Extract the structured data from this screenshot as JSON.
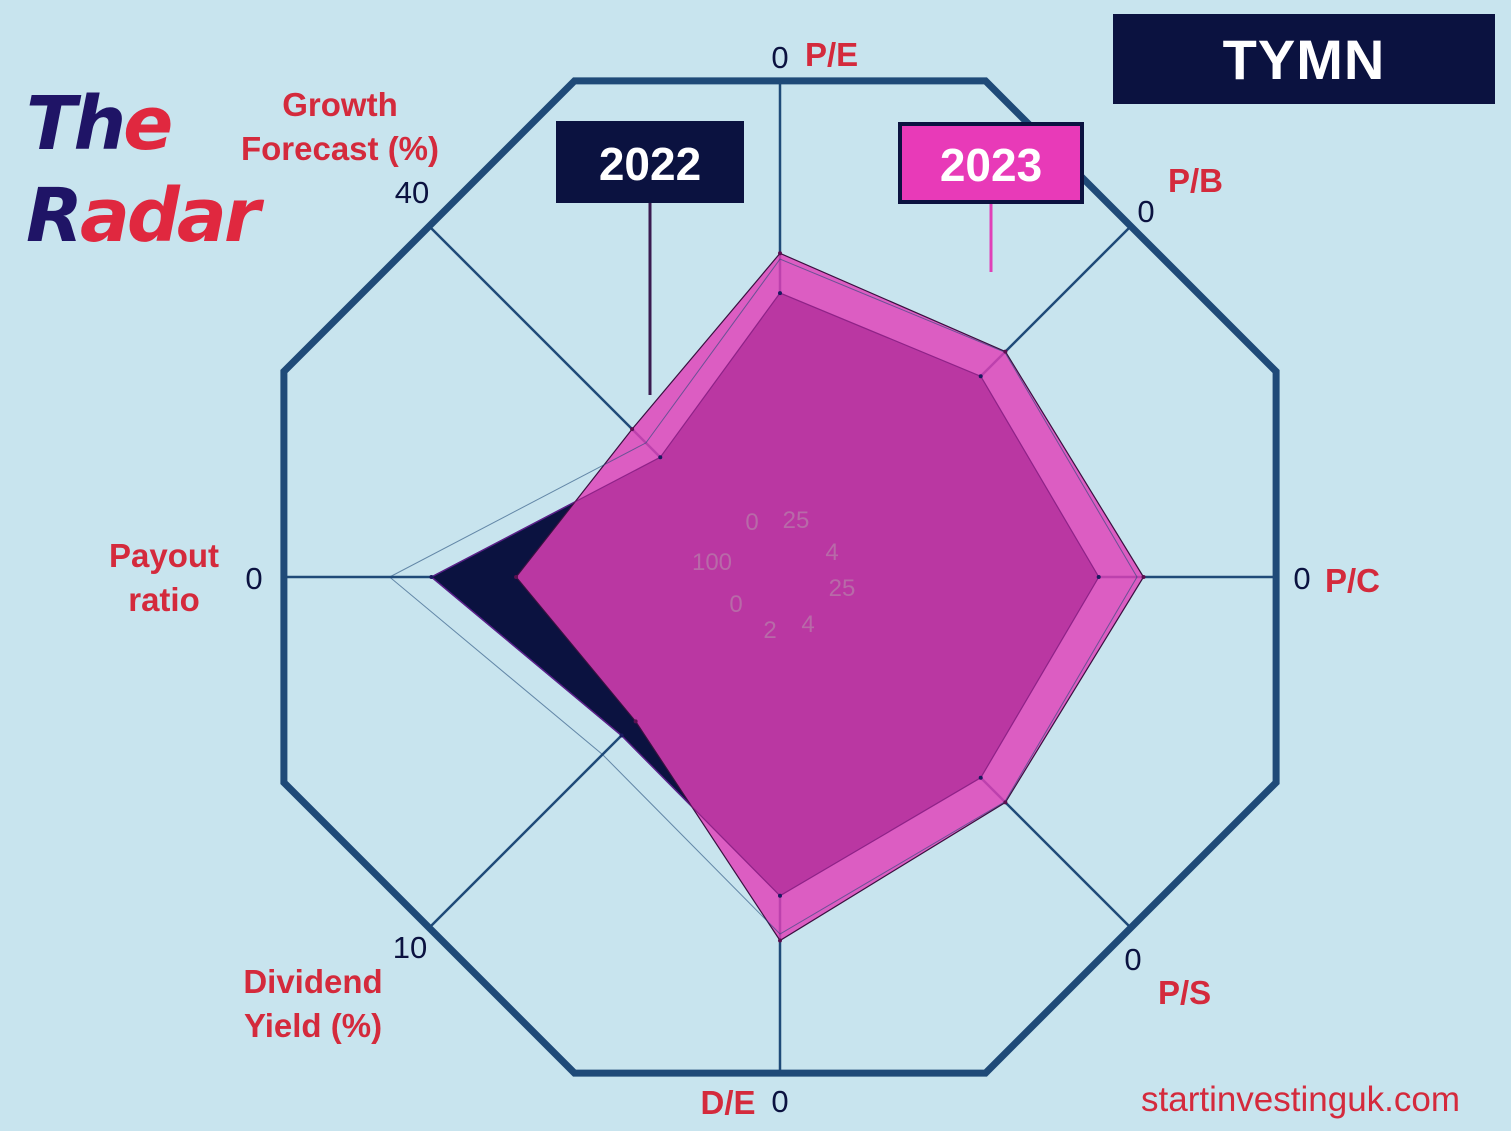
{
  "brand": {
    "line1_a": "Th",
    "line1_b": "e",
    "line2_a": "R",
    "line2_b": "adar"
  },
  "ticker": "TYMN",
  "website": "startinvestinguk.com",
  "colors": {
    "background": "#c8e4ee",
    "frame": "#1f4a78",
    "axis": "#1f4a78",
    "label": "#d42a3c",
    "series_2022": "#0b1240",
    "series_2023": "#e040b8",
    "overlap": "#a8238e"
  },
  "chart_data": {
    "type": "radar",
    "axes": [
      {
        "name": "P/E",
        "outer_tick": "0",
        "inner_tick": "25"
      },
      {
        "name": "P/B",
        "outer_tick": "0",
        "inner_tick": "4"
      },
      {
        "name": "P/C",
        "outer_tick": "0",
        "inner_tick": "25"
      },
      {
        "name": "P/S",
        "outer_tick": "0",
        "inner_tick": "4"
      },
      {
        "name": "D/E",
        "outer_tick": "0",
        "inner_tick": "2"
      },
      {
        "name": "Dividend Yield (%)",
        "label_lines": [
          "Dividend",
          "Yield (%)"
        ],
        "outer_tick": "10",
        "inner_tick": "0"
      },
      {
        "name": "Payout ratio",
        "label_lines": [
          "Payout",
          "ratio"
        ],
        "outer_tick": "0",
        "inner_tick": "100"
      },
      {
        "name": "Growth Forecast (%)",
        "label_lines": [
          "Growth",
          "Forecast (%)"
        ],
        "outer_tick": "40",
        "inner_tick": "0"
      }
    ],
    "axis_min": 0,
    "axis_max": 1,
    "series": [
      {
        "name": "2022",
        "values": [
          0.57,
          0.57,
          0.64,
          0.57,
          0.64,
          0.45,
          0.7,
          0.34
        ]
      },
      {
        "name": "2023",
        "values": [
          0.65,
          0.64,
          0.73,
          0.64,
          0.73,
          0.41,
          0.53,
          0.42
        ]
      }
    ]
  }
}
